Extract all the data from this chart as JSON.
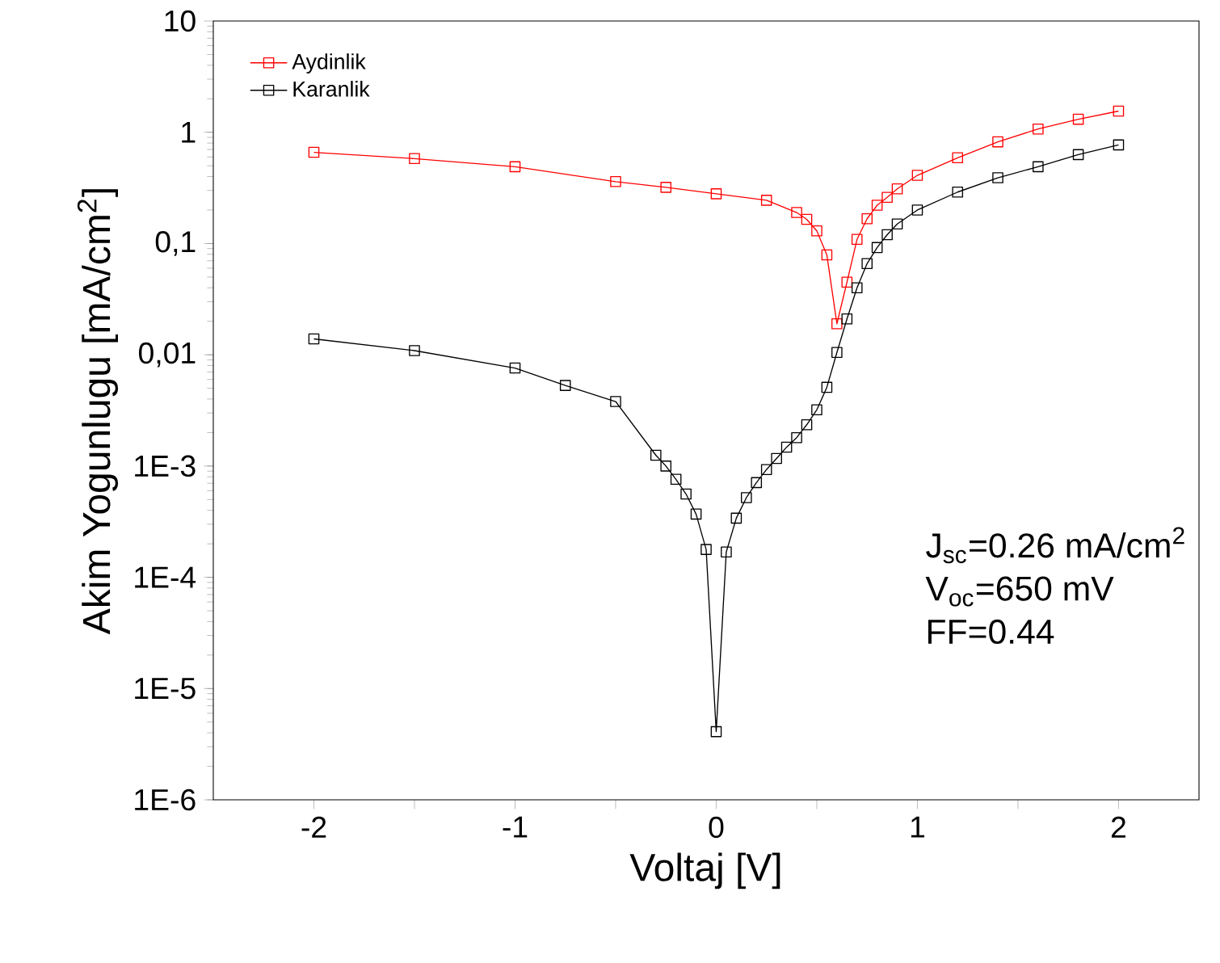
{
  "chart_data": {
    "type": "line",
    "xlabel": "Voltaj [V]",
    "ylabel": "Akim Yogunlugu [mA/cm$^{2}$]",
    "log": "y",
    "xlim": [
      -2.5,
      2.4
    ],
    "ylim": [
      1e-06,
      10
    ],
    "xticks": [
      -2,
      {
        "value": -1.5,
        "label": null
      },
      -1,
      {
        "value": -0.5,
        "label": null
      },
      0,
      {
        "value": 0.5,
        "label": null
      },
      1,
      {
        "value": 1.5,
        "label": null
      },
      2
    ],
    "yticks": [
      {
        "value": 1e-06,
        "label": "1E-6"
      },
      {
        "value": 1e-05,
        "label": "1E-5"
      },
      {
        "value": 0.0001,
        "label": "1E-4"
      },
      {
        "value": 0.001,
        "label": "1E-3"
      },
      {
        "value": 0.01,
        "label": "0,01"
      },
      {
        "value": 0.1,
        "label": "0,1"
      },
      1,
      10
    ],
    "marker": "square",
    "line_style": "solid",
    "legend": "top left",
    "grid": false,
    "series": [
      {
        "name": "Aydinlik",
        "color": "#ff0000",
        "x": [
          -2,
          -1.5,
          -1,
          -0.5,
          -0.25,
          0,
          0.25,
          0.4,
          0.45,
          0.5,
          0.55,
          0.6,
          0.65,
          0.7,
          0.75,
          0.8,
          0.85,
          0.9,
          1.0,
          1.2,
          1.4,
          1.6,
          1.8,
          2.0
        ],
        "values": [
          0.66,
          0.58,
          0.49,
          0.36,
          0.32,
          0.28,
          0.245,
          0.19,
          0.165,
          0.13,
          0.079,
          0.019,
          0.045,
          0.109,
          0.167,
          0.221,
          0.26,
          0.31,
          0.41,
          0.59,
          0.82,
          1.07,
          1.31,
          1.55
        ]
      },
      {
        "name": "Karanlik",
        "color": "#000000",
        "x": [
          -2,
          -1.5,
          -1,
          -0.75,
          -0.5,
          -0.3,
          -0.25,
          -0.2,
          -0.15,
          -0.1,
          -0.05,
          0,
          0.05,
          0.1,
          0.15,
          0.2,
          0.25,
          0.3,
          0.35,
          0.4,
          0.45,
          0.5,
          0.55,
          0.6,
          0.65,
          0.7,
          0.75,
          0.8,
          0.85,
          0.9,
          1.0,
          1.2,
          1.4,
          1.6,
          1.8,
          2.0
        ],
        "values": [
          0.0139,
          0.0109,
          0.0076,
          0.0053,
          0.0038,
          0.00125,
          0.001,
          0.00076,
          0.00056,
          0.00037,
          0.000178,
          4.1e-06,
          0.000169,
          0.00034,
          0.00052,
          0.00071,
          0.00093,
          0.00117,
          0.00148,
          0.0018,
          0.00235,
          0.0032,
          0.0051,
          0.0105,
          0.021,
          0.04,
          0.066,
          0.092,
          0.12,
          0.15,
          0.2,
          0.29,
          0.39,
          0.49,
          0.63,
          0.77
        ]
      }
    ],
    "annotations": [
      "J$_{sc}$=0.26 mA/cm$^{2}$",
      "V$_{oc}$=650 mV",
      "FF=0.44"
    ]
  }
}
